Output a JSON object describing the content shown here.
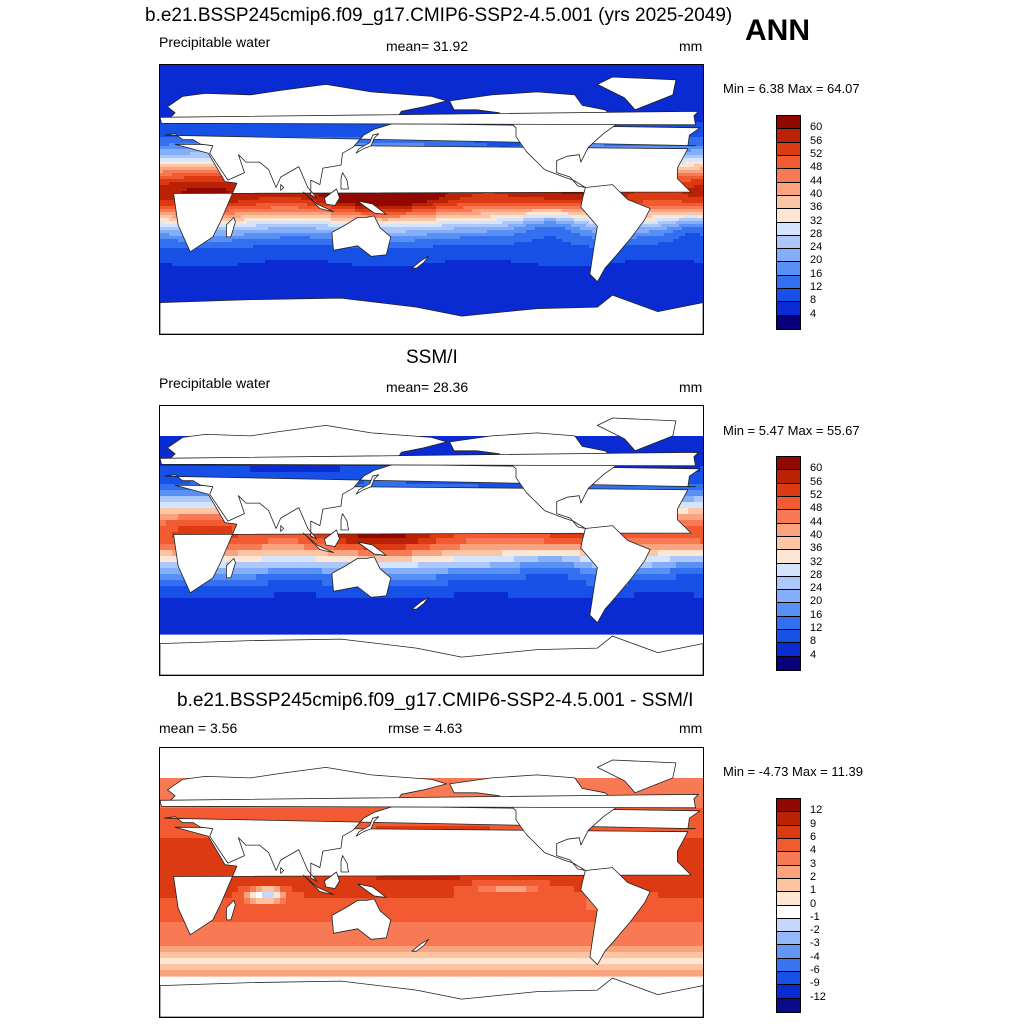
{
  "header": {
    "title": "b.e21.BSSP245cmip6.f09_g17.CMIP6-SSP2-4.5.001 (yrs 2025-2049)",
    "season": "ANN"
  },
  "colors": {
    "main_scale": [
      "#08007a",
      "#0a2ad2",
      "#1650e6",
      "#3270f0",
      "#5890f6",
      "#84aef8",
      "#acc8fa",
      "#d4e4fc",
      "#fde6d4",
      "#fcc6a6",
      "#fba27e",
      "#f87a54",
      "#f25a32",
      "#dc3a12",
      "#ba2206",
      "#900800"
    ],
    "diff_scale": [
      "#0a0a8a",
      "#0a2ad2",
      "#1650e6",
      "#3a74f0",
      "#6496f6",
      "#94b8fa",
      "#c4d8fc",
      "#ffffff",
      "#fde6d4",
      "#fcc4a0",
      "#fba27e",
      "#f87a54",
      "#f25a32",
      "#dc3a12",
      "#ba2206",
      "#900800"
    ],
    "land": "#ffffff",
    "coast": "#222222"
  },
  "panels": [
    {
      "id": "model",
      "title": "",
      "left_label": "Precipitable water",
      "center_label": "mean=  31.92",
      "right_label": "mm",
      "minmax": "Min =   6.38 Max =  64.07",
      "colorbar_labels": [
        "60",
        "56",
        "52",
        "48",
        "44",
        "40",
        "36",
        "32",
        "28",
        "24",
        "20",
        "16",
        "12",
        "8",
        "4"
      ]
    },
    {
      "id": "obs",
      "title": "SSM/I",
      "left_label": "Precipitable water",
      "center_label": "mean=  28.36",
      "right_label": "mm",
      "minmax": "Min =   5.47 Max =  55.67",
      "colorbar_labels": [
        "60",
        "56",
        "52",
        "48",
        "44",
        "40",
        "36",
        "32",
        "28",
        "24",
        "20",
        "16",
        "12",
        "8",
        "4"
      ]
    },
    {
      "id": "diff",
      "title": "b.e21.BSSP245cmip6.f09_g17.CMIP6-SSP2-4.5.001 - SSM/I",
      "left_label": "mean =   3.56",
      "center_label": "rmse =   4.63",
      "right_label": "mm",
      "minmax": "Min =  -4.73 Max =  11.39",
      "colorbar_labels": [
        "12",
        "9",
        "6",
        "4",
        "3",
        "2",
        "1",
        "0",
        "-1",
        "-2",
        "-3",
        "-4",
        "-6",
        "-9",
        "-12"
      ]
    }
  ]
}
